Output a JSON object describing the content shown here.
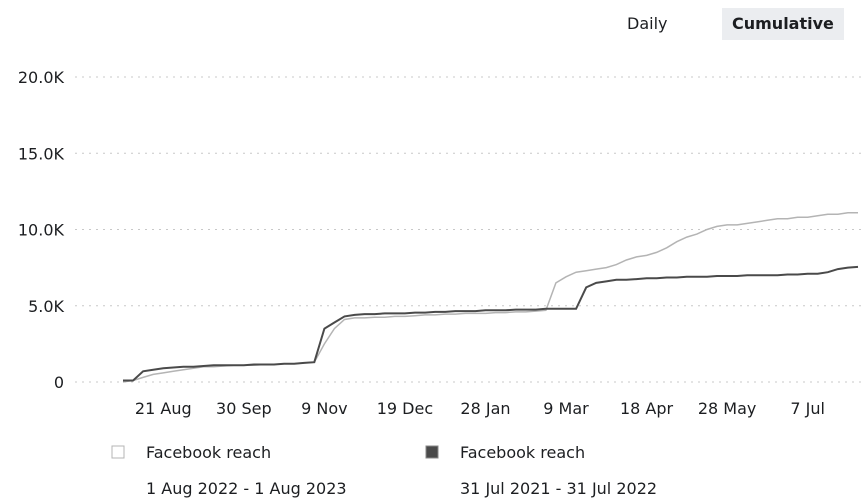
{
  "toggles": [
    "Daily",
    "Cumulative"
  ],
  "chart_data": {
    "type": "line",
    "categories": [
      null,
      null,
      null,
      null,
      "21 Aug",
      null,
      null,
      null,
      null,
      null,
      null,
      null,
      "30 Sep",
      null,
      null,
      null,
      null,
      null,
      null,
      null,
      "9 Nov",
      null,
      null,
      null,
      null,
      null,
      null,
      null,
      "19 Dec",
      null,
      null,
      null,
      null,
      null,
      null,
      null,
      "28 Jan",
      null,
      null,
      null,
      null,
      null,
      null,
      null,
      "9 Mar",
      null,
      null,
      null,
      null,
      null,
      null,
      null,
      "18 Apr",
      null,
      null,
      null,
      null,
      null,
      null,
      null,
      "28 May",
      null,
      null,
      null,
      null,
      null,
      null,
      null,
      "7 Jul",
      null,
      null,
      null,
      null,
      null
    ],
    "series": [
      {
        "name": "Facebook reach",
        "period": "1 Aug 2022 - 1 Aug 2023",
        "color": "#b4b4b4",
        "values": [
          0,
          100,
          300,
          500,
          600,
          700,
          800,
          900,
          1000,
          1000,
          1050,
          1100,
          1100,
          1100,
          1150,
          1150,
          1200,
          1200,
          1250,
          1300,
          2500,
          3500,
          4100,
          4200,
          4200,
          4250,
          4250,
          4300,
          4300,
          4350,
          4400,
          4400,
          4450,
          4450,
          4500,
          4500,
          4500,
          4550,
          4550,
          4600,
          4600,
          4650,
          4700,
          6500,
          6900,
          7200,
          7300,
          7400,
          7500,
          7700,
          8000,
          8200,
          8300,
          8500,
          8800,
          9200,
          9500,
          9700,
          10000,
          10200,
          10300,
          10300,
          10400,
          10500,
          10600,
          10700,
          10700,
          10800,
          10800,
          10900,
          11000,
          11000,
          11100,
          11100
        ]
      },
      {
        "name": "Facebook reach",
        "period": "31 Jul 2021 - 31 Jul 2022",
        "color": "#4a4a4a",
        "values": [
          100,
          100,
          700,
          800,
          900,
          950,
          1000,
          1000,
          1050,
          1100,
          1100,
          1100,
          1100,
          1150,
          1150,
          1150,
          1200,
          1200,
          1250,
          1300,
          3500,
          3900,
          4300,
          4400,
          4450,
          4450,
          4500,
          4500,
          4500,
          4550,
          4550,
          4600,
          4600,
          4650,
          4650,
          4650,
          4700,
          4700,
          4700,
          4750,
          4750,
          4750,
          4800,
          4800,
          4800,
          4800,
          6200,
          6500,
          6600,
          6700,
          6700,
          6750,
          6800,
          6800,
          6850,
          6850,
          6900,
          6900,
          6900,
          6950,
          6950,
          6950,
          7000,
          7000,
          7000,
          7000,
          7050,
          7050,
          7100,
          7100,
          7200,
          7400,
          7500,
          7550
        ]
      }
    ],
    "ylim": [
      0,
      20000
    ],
    "yticks": [
      0,
      {
        "value": 5000,
        "label": "5.0K"
      },
      {
        "value": 10000,
        "label": "10.0K"
      },
      {
        "value": 15000,
        "label": "15.0K"
      },
      {
        "value": 20000,
        "label": "20.0K"
      }
    ],
    "grid": true
  }
}
